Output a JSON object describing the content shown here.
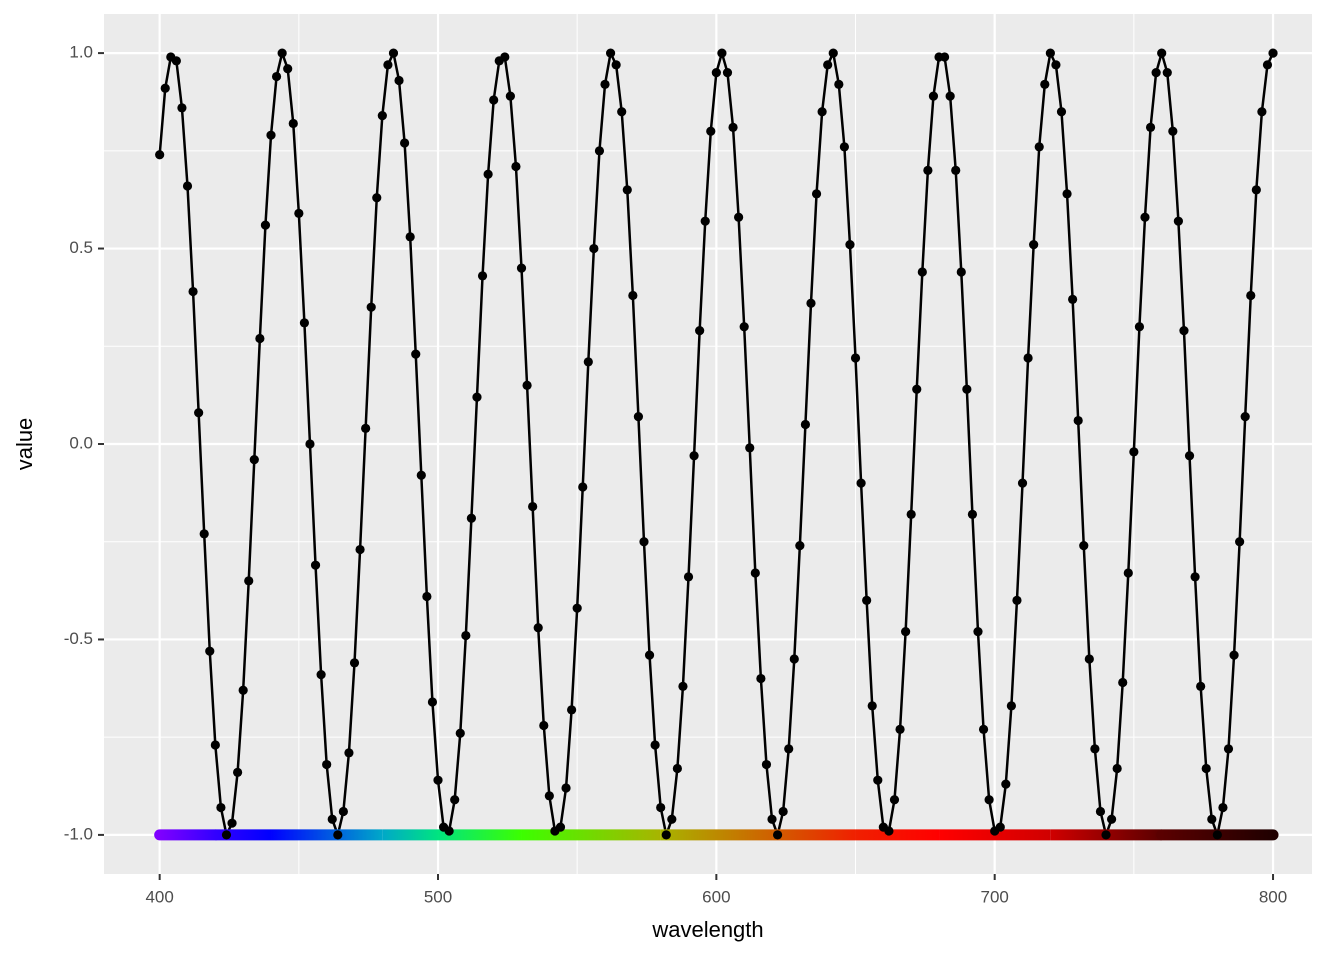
{
  "chart_data": {
    "type": "line",
    "x_label": "wavelength",
    "y_label": "value",
    "x": [
      400,
      402,
      404,
      406,
      408,
      410,
      412,
      414,
      416,
      418,
      420,
      422,
      424,
      426,
      428,
      430,
      432,
      434,
      436,
      438,
      440,
      442,
      444,
      446,
      448,
      450,
      452,
      454,
      456,
      458,
      460,
      462,
      464,
      466,
      468,
      470,
      472,
      474,
      476,
      478,
      480,
      482,
      484,
      486,
      488,
      490,
      492,
      494,
      496,
      498,
      500,
      502,
      504,
      506,
      508,
      510,
      512,
      514,
      516,
      518,
      520,
      522,
      524,
      526,
      528,
      530,
      532,
      534,
      536,
      538,
      540,
      542,
      544,
      546,
      548,
      550,
      552,
      554,
      556,
      558,
      560,
      562,
      564,
      566,
      568,
      570,
      572,
      574,
      576,
      578,
      580,
      582,
      584,
      586,
      588,
      590,
      592,
      594,
      596,
      598,
      600,
      602,
      604,
      606,
      608,
      610,
      612,
      614,
      616,
      618,
      620,
      622,
      624,
      626,
      628,
      630,
      632,
      634,
      636,
      638,
      640,
      642,
      644,
      646,
      648,
      650,
      652,
      654,
      656,
      658,
      660,
      662,
      664,
      666,
      668,
      670,
      672,
      674,
      676,
      678,
      680,
      682,
      684,
      686,
      688,
      690,
      692,
      694,
      696,
      698,
      700,
      702,
      704,
      706,
      708,
      710,
      712,
      714,
      716,
      718,
      720,
      722,
      724,
      726,
      728,
      730,
      732,
      734,
      736,
      738,
      740,
      742,
      744,
      746,
      748,
      750,
      752,
      754,
      756,
      758,
      760,
      762,
      764,
      766,
      768,
      770,
      772,
      774,
      776,
      778,
      780,
      782,
      784,
      786,
      788,
      790,
      792,
      794,
      796,
      798,
      800
    ],
    "series": [
      {
        "color": "#000000",
        "values": [
          0.74,
          0.91,
          0.99,
          0.98,
          0.86,
          0.66,
          0.39,
          0.08,
          -0.23,
          -0.53,
          -0.77,
          -0.93,
          -1.0,
          -0.97,
          -0.84,
          -0.63,
          -0.35,
          -0.04,
          0.27,
          0.56,
          0.79,
          0.94,
          1.0,
          0.96,
          0.82,
          0.59,
          0.31,
          0.0,
          -0.31,
          -0.59,
          -0.82,
          -0.96,
          -1.0,
          -0.94,
          -0.79,
          -0.56,
          -0.27,
          0.04,
          0.35,
          0.63,
          0.84,
          0.97,
          1.0,
          0.93,
          0.77,
          0.53,
          0.23,
          -0.08,
          -0.39,
          -0.66,
          -0.86,
          -0.98,
          -0.99,
          -0.91,
          -0.74,
          -0.49,
          -0.19,
          0.12,
          0.43,
          0.69,
          0.88,
          0.98,
          0.99,
          0.89,
          0.71,
          0.45,
          0.15,
          -0.16,
          -0.47,
          -0.72,
          -0.9,
          -0.99,
          -0.98,
          -0.88,
          -0.68,
          -0.42,
          -0.11,
          0.21,
          0.5,
          0.75,
          0.92,
          1.0,
          0.97,
          0.85,
          0.65,
          0.38,
          0.07,
          -0.25,
          -0.54,
          -0.77,
          -0.93,
          -1.0,
          -0.96,
          -0.83,
          -0.62,
          -0.34,
          -0.03,
          0.29,
          0.57,
          0.8,
          0.95,
          1.0,
          0.95,
          0.81,
          0.58,
          0.3,
          -0.01,
          -0.33,
          -0.6,
          -0.82,
          -0.96,
          -1.0,
          -0.94,
          -0.78,
          -0.55,
          -0.26,
          0.05,
          0.36,
          0.64,
          0.85,
          0.97,
          1.0,
          0.92,
          0.76,
          0.51,
          0.22,
          -0.1,
          -0.4,
          -0.67,
          -0.86,
          -0.98,
          -0.99,
          -0.91,
          -0.73,
          -0.48,
          -0.18,
          0.14,
          0.44,
          0.7,
          0.89,
          0.99,
          0.99,
          0.89,
          0.7,
          0.44,
          0.14,
          -0.18,
          -0.48,
          -0.73,
          -0.91,
          -0.99,
          -0.98,
          -0.87,
          -0.67,
          -0.4,
          -0.1,
          0.22,
          0.51,
          0.76,
          0.92,
          1.0,
          0.97,
          0.85,
          0.64,
          0.37,
          0.06,
          -0.26,
          -0.55,
          -0.78,
          -0.94,
          -1.0,
          -0.96,
          -0.83,
          -0.61,
          -0.33,
          -0.02,
          0.3,
          0.58,
          0.81,
          0.95,
          1.0,
          0.95,
          0.8,
          0.57,
          0.29,
          -0.03,
          -0.34,
          -0.62,
          -0.83,
          -0.96,
          -1.0,
          -0.93,
          -0.78,
          -0.54,
          -0.25,
          0.07,
          0.38,
          0.65,
          0.85,
          0.97,
          1.0
        ]
      }
    ],
    "spectrum": {
      "y": -1,
      "stops": [
        {
          "x": 400,
          "color": "#7f00ff"
        },
        {
          "x": 420,
          "color": "#3300ff"
        },
        {
          "x": 440,
          "color": "#0000ff"
        },
        {
          "x": 480,
          "color": "#00a8c8"
        },
        {
          "x": 500,
          "color": "#00e480"
        },
        {
          "x": 530,
          "color": "#3cff00"
        },
        {
          "x": 580,
          "color": "#a8b400"
        },
        {
          "x": 620,
          "color": "#d06000"
        },
        {
          "x": 650,
          "color": "#f02000"
        },
        {
          "x": 680,
          "color": "#ff0000"
        },
        {
          "x": 720,
          "color": "#d00000"
        },
        {
          "x": 760,
          "color": "#5a0000"
        },
        {
          "x": 800,
          "color": "#200000"
        }
      ]
    },
    "xlim": [
      380,
      814
    ],
    "ylim": [
      -1.1,
      1.1
    ],
    "xticks": [
      400,
      500,
      600,
      700,
      800
    ],
    "yticks": [
      {
        "value": -1,
        "label": "-1.0"
      },
      {
        "value": -0.5,
        "label": "-0.5"
      },
      {
        "value": 0,
        "label": "0.0"
      },
      {
        "value": 0.5,
        "label": "0.5"
      },
      {
        "value": 1,
        "label": "1.0"
      }
    ],
    "x_minor_grid": [
      450,
      550,
      650,
      750
    ],
    "y_minor_grid": [
      -0.75,
      -0.25,
      0.25,
      0.75
    ],
    "grid": true
  }
}
